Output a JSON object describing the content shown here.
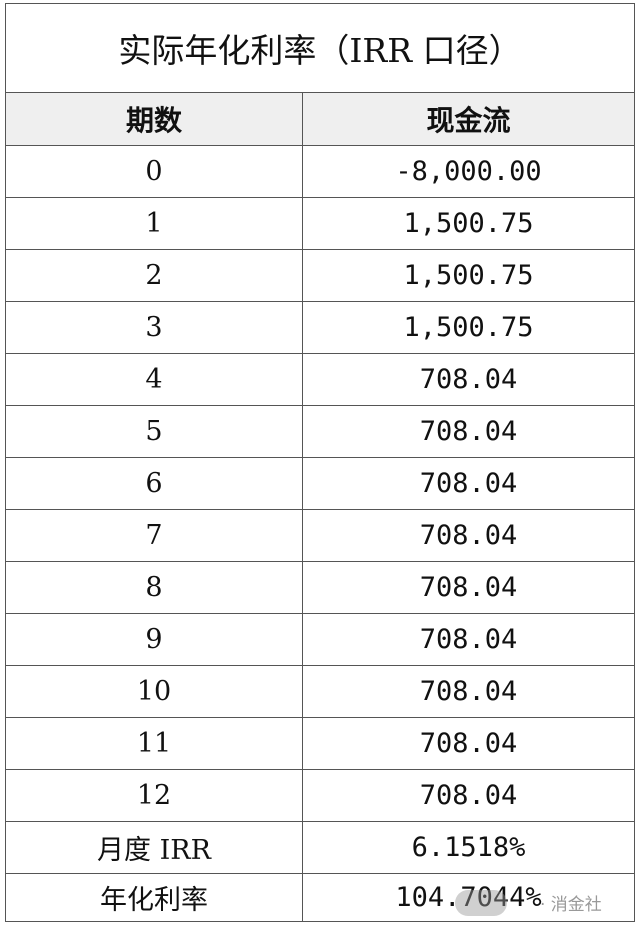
{
  "title": "实际年化利率（IRR 口径）",
  "headers": [
    "期数",
    "现金流"
  ],
  "rows": [
    [
      "0",
      "-8,000.00"
    ],
    [
      "1",
      "1,500.75"
    ],
    [
      "2",
      "1,500.75"
    ],
    [
      "3",
      "1,500.75"
    ],
    [
      "4",
      "708.04"
    ],
    [
      "5",
      "708.04"
    ],
    [
      "6",
      "708.04"
    ],
    [
      "7",
      "708.04"
    ],
    [
      "8",
      "708.04"
    ],
    [
      "9",
      "708.04"
    ],
    [
      "10",
      "708.04"
    ],
    [
      "11",
      "708.04"
    ],
    [
      "12",
      "708.04"
    ]
  ],
  "summary": [
    [
      "月度 IRR",
      "6.1518%"
    ],
    [
      "年化利率",
      "104.7044%"
    ]
  ],
  "watermark": "· 消金社"
}
